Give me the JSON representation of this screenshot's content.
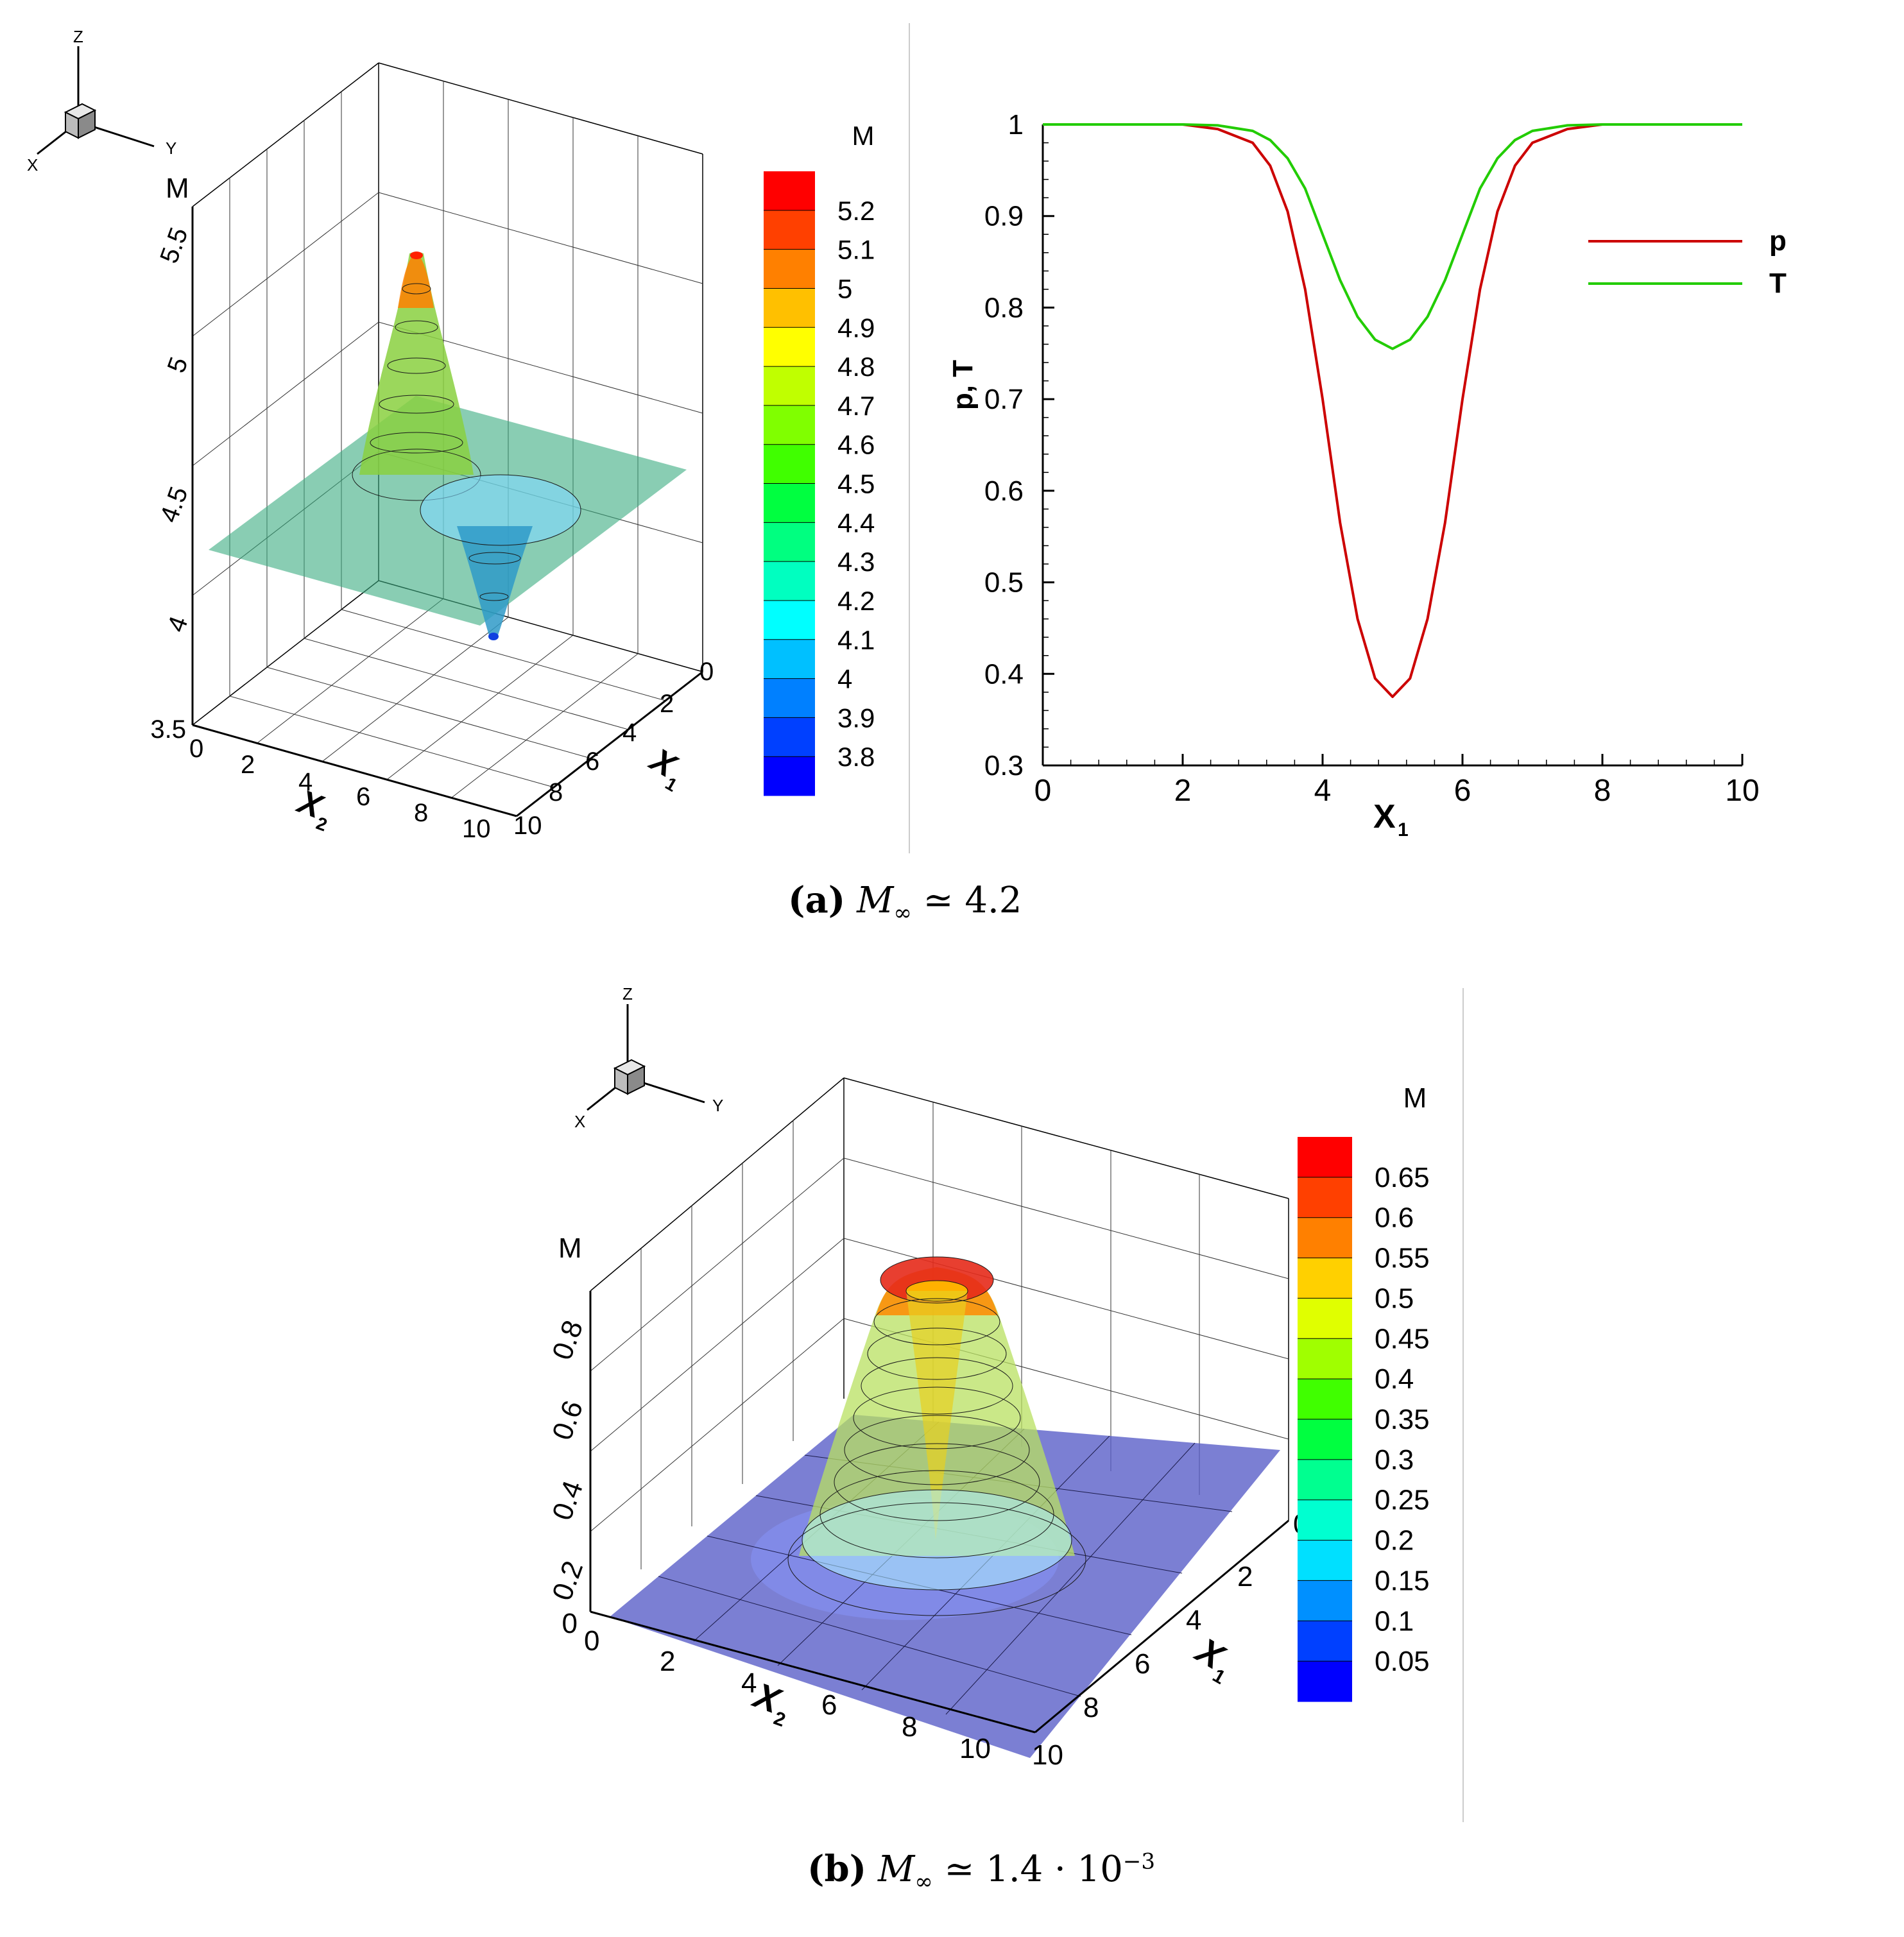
{
  "panel_a": {
    "caption": {
      "label": "(a)",
      "symbol": "M",
      "subscript": "∞",
      "relation": "≃",
      "value": "4.2"
    },
    "triad": {
      "z": "Z",
      "y": "Y",
      "x": "X"
    },
    "surface": {
      "z_label": "M",
      "z_ticks": [
        "5.5",
        "5",
        "4.5",
        "4",
        "3.5"
      ],
      "x2_ticks": [
        "0",
        "2",
        "4",
        "6",
        "8",
        "10"
      ],
      "x1_ticks": [
        "0",
        "2",
        "4",
        "6",
        "8",
        "10"
      ],
      "x2_label": "X",
      "x2_sub": "2",
      "x1_label": "X",
      "x1_sub": "1"
    },
    "colorbar": {
      "title": "M",
      "labels": [
        "5.2",
        "5.1",
        "5",
        "4.9",
        "4.8",
        "4.7",
        "4.6",
        "4.5",
        "4.4",
        "4.3",
        "4.2",
        "4.1",
        "4",
        "3.9",
        "3.8"
      ],
      "colors": [
        "#ff0000",
        "#ff4000",
        "#ff8000",
        "#ffc000",
        "#ffff00",
        "#c0ff00",
        "#80ff00",
        "#40ff00",
        "#00ff40",
        "#00ff80",
        "#00ffc0",
        "#00ffff",
        "#00c0ff",
        "#0080ff",
        "#0040ff",
        "#0000ff"
      ]
    }
  },
  "panel_b": {
    "caption": {
      "label": "(b)",
      "symbol": "M",
      "subscript": "∞",
      "relation": "≃",
      "mantissa": "1.4 · 10",
      "exponent": "−3"
    },
    "triad": {
      "z": "Z",
      "y": "Y",
      "x": "X"
    },
    "surface": {
      "z_label": "M",
      "z_ticks": [
        "0.8",
        "0.6",
        "0.4",
        "0.2",
        "0"
      ],
      "x2_ticks": [
        "0",
        "2",
        "4",
        "6",
        "8",
        "10"
      ],
      "x1_ticks": [
        "0",
        "2",
        "4",
        "6",
        "8",
        "10"
      ],
      "x2_label": "X",
      "x2_sub": "2",
      "x1_label": "X",
      "x1_sub": "1"
    },
    "colorbar": {
      "title": "M",
      "labels": [
        "0.65",
        "0.6",
        "0.55",
        "0.5",
        "0.45",
        "0.4",
        "0.35",
        "0.3",
        "0.25",
        "0.2",
        "0.15",
        "0.1",
        "0.05"
      ],
      "colors": [
        "#ff0000",
        "#ff4000",
        "#ff8000",
        "#ffd000",
        "#e0ff00",
        "#a0ff00",
        "#40ff00",
        "#00ff40",
        "#00ff90",
        "#00ffd0",
        "#00e0ff",
        "#0090ff",
        "#0040ff",
        "#0000ff"
      ]
    }
  },
  "chart_data": [
    {
      "type": "line",
      "title": "",
      "xlabel": "X",
      "xlabel_sub": "1",
      "ylabel": "p, T",
      "xlim": [
        0,
        10
      ],
      "ylim": [
        0.3,
        1
      ],
      "xticks": [
        "0",
        "2",
        "4",
        "6",
        "8",
        "10"
      ],
      "yticks": [
        "0.3",
        "0.4",
        "0.5",
        "0.6",
        "0.7",
        "0.8",
        "0.9",
        "1"
      ],
      "legend_position": "right",
      "x": [
        0,
        1,
        2,
        2.5,
        3,
        3.25,
        3.5,
        3.75,
        4,
        4.25,
        4.5,
        4.75,
        5,
        5.25,
        5.5,
        5.75,
        6,
        6.25,
        6.5,
        6.75,
        7,
        7.5,
        8,
        9,
        10
      ],
      "series": [
        {
          "name": "p",
          "color": "#cc0000",
          "values": [
            1,
            1,
            1,
            0.995,
            0.98,
            0.955,
            0.905,
            0.82,
            0.7,
            0.565,
            0.46,
            0.395,
            0.375,
            0.395,
            0.46,
            0.565,
            0.7,
            0.82,
            0.905,
            0.955,
            0.98,
            0.995,
            1,
            1,
            1
          ]
        },
        {
          "name": "T",
          "color": "#22cc00",
          "values": [
            1,
            1,
            1,
            0.999,
            0.993,
            0.983,
            0.963,
            0.93,
            0.88,
            0.83,
            0.79,
            0.765,
            0.755,
            0.765,
            0.79,
            0.83,
            0.88,
            0.93,
            0.963,
            0.983,
            0.993,
            0.999,
            1,
            1,
            1
          ]
        }
      ]
    },
    {
      "type": "surface",
      "title": "",
      "xlabel": "X2",
      "ylabel": "X1",
      "zlabel": "M",
      "x_range": [
        0,
        10
      ],
      "y_range": [
        0,
        10
      ],
      "z_range": [
        3.5,
        5.5
      ],
      "base_value": 4.2,
      "peak_value": 5.35,
      "trough_value": 3.85,
      "peak_location": "near X2 ≈ 3, X1 ≈ 5",
      "trough_location": "near X2 ≈ 7, X1 ≈ 5"
    },
    {
      "type": "surface",
      "title": "",
      "xlabel": "X2",
      "ylabel": "X1",
      "zlabel": "M",
      "x_range": [
        0,
        10
      ],
      "y_range": [
        0,
        10
      ],
      "z_range": [
        0,
        0.8
      ],
      "base_value": 0.0,
      "peak_value": 0.68,
      "center": [
        5,
        5
      ]
    }
  ]
}
